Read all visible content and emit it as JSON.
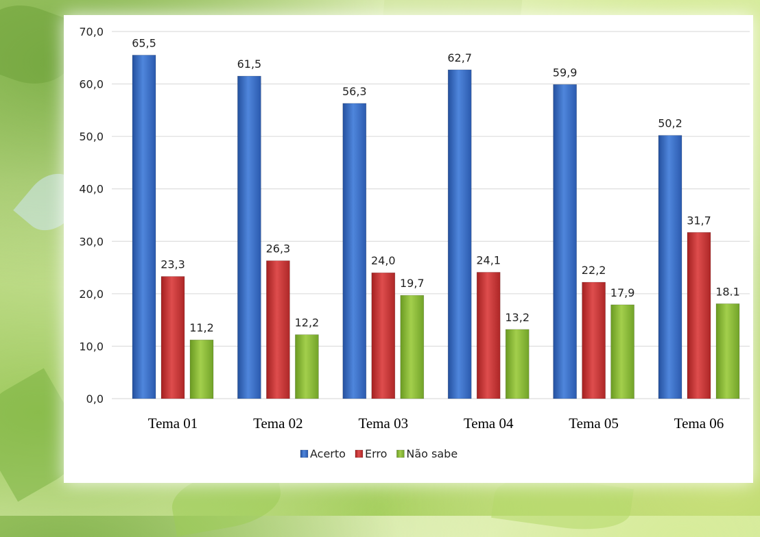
{
  "chart_data": {
    "type": "bar",
    "categories": [
      "Tema 01",
      "Tema 02",
      "Tema 03",
      "Tema 04",
      "Tema 05",
      "Tema 06"
    ],
    "series": [
      {
        "name": "Acerto",
        "values": [
          65.5,
          61.5,
          56.3,
          62.7,
          59.9,
          50.2
        ],
        "labels": [
          "65,5",
          "61,5",
          "56,3",
          "62,7",
          "59,9",
          "50,2"
        ],
        "color": "#3f74c9"
      },
      {
        "name": "Erro",
        "values": [
          23.3,
          26.3,
          24.0,
          24.1,
          22.2,
          31.7
        ],
        "labels": [
          "23,3",
          "26,3",
          "24,0",
          "24,1",
          "22,2",
          "31,7"
        ],
        "color": "#cc3a3a"
      },
      {
        "name": "Não sabe",
        "values": [
          11.2,
          12.2,
          19.7,
          13.2,
          17.9,
          18.1
        ],
        "labels": [
          "11,2",
          "12,2",
          "19,7",
          "13,2",
          "17,9",
          "18.1"
        ],
        "color": "#8dbb3a"
      }
    ],
    "yticks": [
      "0,0",
      "10,0",
      "20,0",
      "30,0",
      "40,0",
      "50,0",
      "60,0",
      "70,0"
    ],
    "ylim": [
      0,
      70
    ],
    "grid": true,
    "legend_position": "bottom"
  }
}
